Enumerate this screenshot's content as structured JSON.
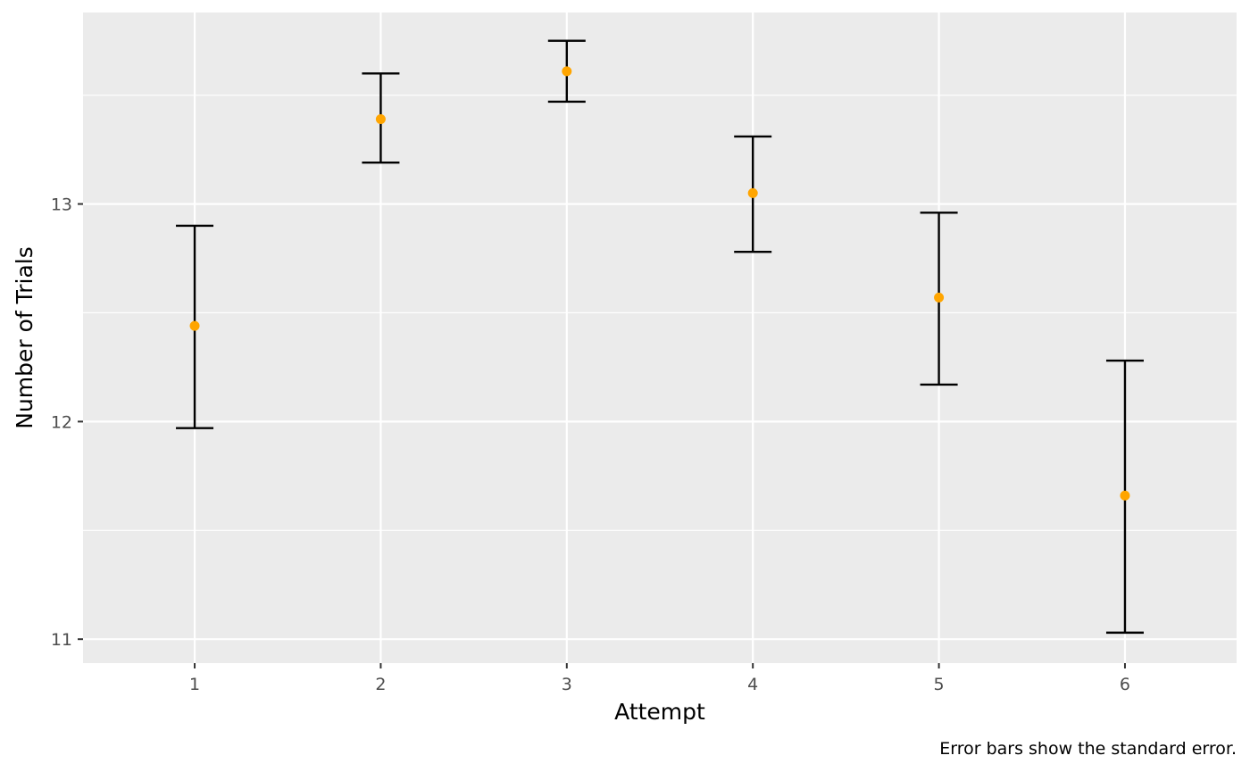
{
  "chart_data": {
    "type": "scatter",
    "title": "",
    "xlabel": "Attempt",
    "ylabel": "Number of Trials",
    "caption": "Error bars show the standard error.",
    "x": [
      1,
      2,
      3,
      4,
      5,
      6
    ],
    "x_tick_labels": [
      "1",
      "2",
      "3",
      "4",
      "5",
      "6"
    ],
    "y_tick_labels": [
      "11",
      "12",
      "13"
    ],
    "y_ticks": [
      11,
      12,
      13
    ],
    "xlim": [
      0.4,
      6.6
    ],
    "ylim": [
      10.89,
      13.88
    ],
    "series": [
      {
        "values": [
          12.44,
          13.39,
          13.61,
          13.05,
          12.57,
          11.66
        ],
        "error_low": [
          11.97,
          13.19,
          13.47,
          12.78,
          12.17,
          11.03
        ],
        "error_high": [
          12.9,
          13.6,
          13.75,
          13.31,
          12.96,
          12.28
        ],
        "point_color": "#FFA500"
      }
    ],
    "panel_background": "#EBEBEB",
    "grid_color": "#FFFFFF",
    "errorbar_color": "#000000",
    "grid": true,
    "legend": "none"
  }
}
